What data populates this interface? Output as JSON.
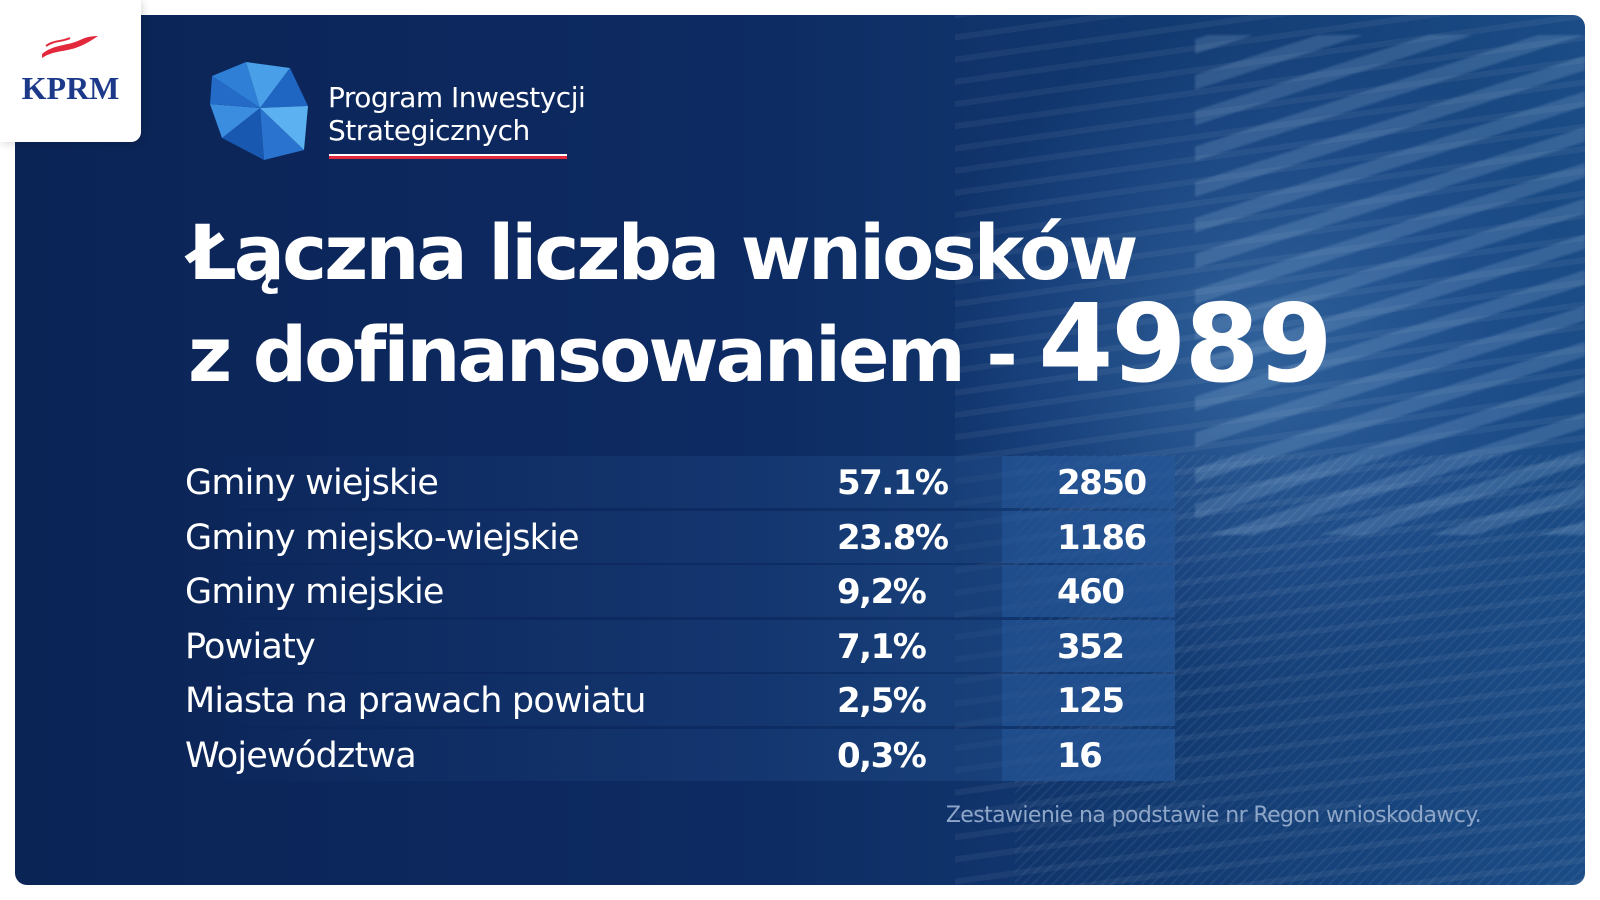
{
  "brand": {
    "kprm_label": "KPRM",
    "program_line1": "Program Inwestycji",
    "program_line2": "Strategicznych"
  },
  "headline": {
    "line1": "Łączna liczba wniosków",
    "line2_prefix": "z dofinansowaniem -",
    "total": "4989"
  },
  "table": {
    "rows": [
      {
        "label": "Gminy wiejskie",
        "percent": "57.1%",
        "count": "2850"
      },
      {
        "label": "Gminy miejsko-wiejskie",
        "percent": "23.8%",
        "count": "1186"
      },
      {
        "label": "Gminy miejskie",
        "percent": "9,2%",
        "count": "460"
      },
      {
        "label": "Powiaty",
        "percent": "7,1%",
        "count": "352"
      },
      {
        "label": "Miasta na prawach powiatu",
        "percent": "2,5%",
        "count": "125"
      },
      {
        "label": "Województwa",
        "percent": "0,3%",
        "count": "16"
      }
    ]
  },
  "footnote": "Zestawienie na podstawie nr Regon wnioskodawcy.",
  "colors": {
    "background": "#0d2a62",
    "accent_red": "#e3283c",
    "text": "#ffffff",
    "footnote": "#8ea6c7"
  }
}
